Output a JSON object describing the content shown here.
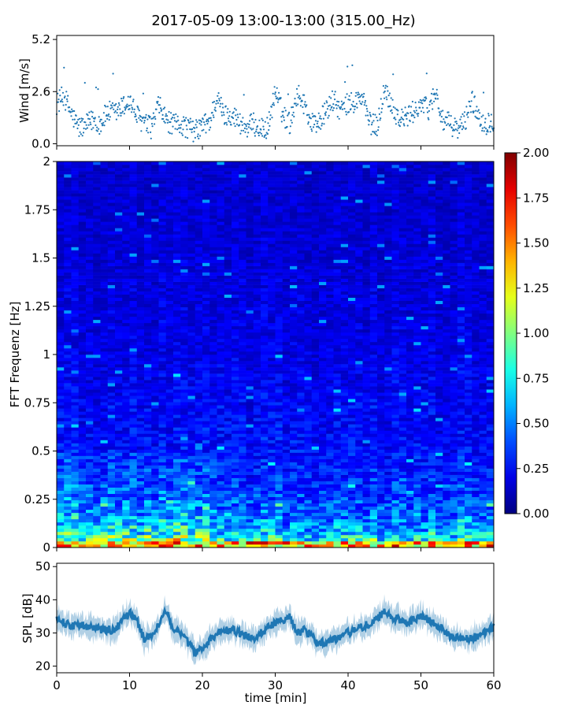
{
  "figure": {
    "title": "2017-05-09 13:00-13:00 (315.00_Hz)"
  },
  "chart_data": [
    {
      "id": "wind",
      "type": "scatter",
      "ylabel": "Wind [m/s]",
      "xlabel": "",
      "xlim": [
        0,
        60
      ],
      "ylim": [
        -0.1,
        5.4
      ],
      "yticks": [
        "0.0",
        "2.6",
        "5.2"
      ],
      "ytick_values": [
        0.0,
        2.6,
        5.2
      ],
      "color": "#1f77b4",
      "x": [
        0,
        1,
        2,
        3,
        4,
        5,
        6,
        7,
        8,
        9,
        10,
        11,
        12,
        13,
        14,
        15,
        16,
        17,
        18,
        19,
        20,
        21,
        22,
        23,
        24,
        25,
        26,
        27,
        28,
        29,
        30,
        31,
        32,
        33,
        34,
        35,
        36,
        37,
        38,
        39,
        40,
        41,
        42,
        43,
        44,
        45,
        46,
        47,
        48,
        49,
        50,
        51,
        52,
        53,
        54,
        55,
        56,
        57,
        58,
        59,
        60
      ],
      "values": [
        2.0,
        2.4,
        1.5,
        0.8,
        0.9,
        1.2,
        1.0,
        1.6,
        1.5,
        1.8,
        2.1,
        1.4,
        1.0,
        0.8,
        1.9,
        1.2,
        0.9,
        1.0,
        0.8,
        0.6,
        0.9,
        1.1,
        2.3,
        1.4,
        1.5,
        1.1,
        0.8,
        1.0,
        0.7,
        0.8,
        2.6,
        1.5,
        1.0,
        2.5,
        2.0,
        1.0,
        1.1,
        1.6,
        2.2,
        1.6,
        2.0,
        2.1,
        2.3,
        1.0,
        0.9,
        2.7,
        2.0,
        1.2,
        1.3,
        1.6,
        2.0,
        1.7,
        2.6,
        1.1,
        1.0,
        0.7,
        1.1,
        2.2,
        1.3,
        1.0,
        1.2
      ]
    },
    {
      "id": "spectrogram",
      "type": "heatmap",
      "ylabel": "FFT Frequenz [Hz]",
      "xlabel": "",
      "xlim": [
        0,
        60
      ],
      "ylim": [
        0,
        2
      ],
      "yticks": [
        "0",
        "0.25",
        "0.5",
        "0.75",
        "1",
        "1.25",
        "1.5",
        "1.75",
        "2"
      ],
      "ytick_values": [
        0,
        0.25,
        0.5,
        0.75,
        1,
        1.25,
        1.5,
        1.75,
        2
      ],
      "colorbar": {
        "min": 0.0,
        "max": 2.0,
        "ticks": [
          "0.00",
          "0.25",
          "0.50",
          "0.75",
          "1.00",
          "1.25",
          "1.50",
          "1.75",
          "2.00"
        ],
        "tick_values": [
          0,
          0.25,
          0.5,
          0.75,
          1.0,
          1.25,
          1.5,
          1.75,
          2.0
        ],
        "colormap": "jet"
      },
      "band_profile": {
        "frequencies": [
          0.0,
          0.02,
          0.05,
          0.1,
          0.2,
          0.3,
          0.4,
          0.5,
          0.6,
          0.75,
          0.85,
          1.0,
          1.5,
          2.0
        ],
        "mean_values": [
          1.2,
          0.9,
          0.75,
          0.55,
          0.42,
          0.35,
          0.3,
          0.27,
          0.25,
          0.24,
          0.22,
          0.2,
          0.17,
          0.15
        ]
      }
    },
    {
      "id": "spl",
      "type": "line",
      "ylabel": "SPL [dB]",
      "xlabel": "time [min]",
      "xlim": [
        0,
        60
      ],
      "ylim": [
        18,
        51
      ],
      "yticks": [
        "20",
        "30",
        "40",
        "50"
      ],
      "ytick_values": [
        20,
        30,
        40,
        50
      ],
      "xticks": [
        "0",
        "10",
        "20",
        "30",
        "40",
        "50",
        "60"
      ],
      "xtick_values": [
        0,
        10,
        20,
        30,
        40,
        50,
        60
      ],
      "color": "#1f77b4",
      "x": [
        0,
        2,
        4,
        6,
        8,
        10,
        11,
        12,
        13,
        14,
        15,
        16,
        17,
        18,
        19,
        20,
        22,
        24,
        26,
        27,
        28,
        30,
        32,
        33,
        34,
        36,
        38,
        40,
        42,
        44,
        45,
        46,
        48,
        50,
        52,
        54,
        56,
        58,
        60
      ],
      "values": [
        34,
        32,
        32,
        31,
        31,
        36,
        34,
        28,
        29,
        33,
        37,
        31,
        30,
        27,
        24,
        25,
        30,
        31,
        29,
        28,
        30,
        33,
        35,
        30,
        31,
        27,
        28,
        30,
        32,
        34,
        37,
        35,
        33,
        35,
        33,
        29,
        28,
        29,
        32
      ]
    }
  ]
}
